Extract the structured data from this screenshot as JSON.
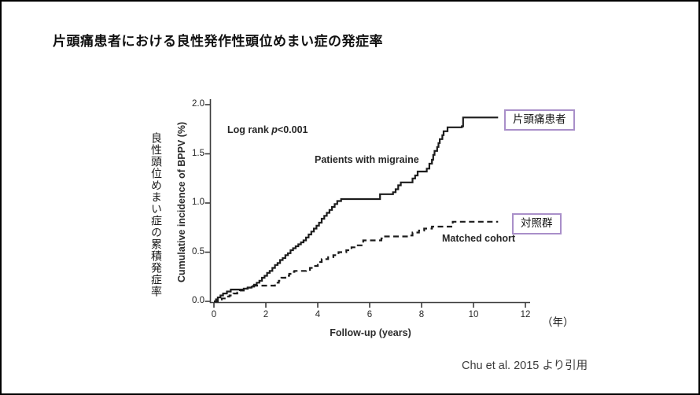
{
  "frame": {
    "title": "片頭痛患者における良性発作性頭位めまい症の発症率",
    "citation": "Chu et al. 2015 より引用"
  },
  "labels": {
    "y_axis_jp": "良性頭位めまい症の累積発症率",
    "y_axis_en": "Cumulative incidence of BPPV (%)",
    "x_axis_title": "Follow-up (years)",
    "x_axis_unit": "（年）",
    "log_rank_prefix": "Log rank ",
    "log_rank_p": "p",
    "log_rank_value": "<0.001",
    "series1_inline": "Patients with migraine",
    "series2_inline": "Matched cohort",
    "series1_box": "片頭痛患者",
    "series2_box": "対照群"
  },
  "colors": {
    "curve": "#1c1c1c",
    "axis": "#3d3d3d",
    "box_border": "#a98fc9",
    "citation_text": "#3a3a3a"
  },
  "chart_data": {
    "type": "line",
    "subtype": "step-cumulative-incidence",
    "title": "片頭痛患者における良性発作性頭位めまい症の発症率",
    "xlabel": "Follow-up (years)",
    "ylabel": "Cumulative incidence of BPPV (%)",
    "xlim": [
      0,
      12
    ],
    "ylim": [
      0.0,
      2.0
    ],
    "x_ticks": [
      0,
      2,
      4,
      6,
      8,
      10,
      12
    ],
    "y_ticks": [
      "0.0",
      "0.5",
      "1.0",
      "1.5",
      "2.0"
    ],
    "grid": false,
    "annotation": "Log rank p<0.001",
    "legend_position": "inline-right-boxes",
    "series": [
      {
        "name": "Patients with migraine",
        "name_jp": "片頭痛患者",
        "style": "solid",
        "end_value_pct": 1.87,
        "points": [
          [
            0,
            0
          ],
          [
            0.08,
            0.02
          ],
          [
            0.15,
            0.04
          ],
          [
            0.25,
            0.06
          ],
          [
            0.35,
            0.08
          ],
          [
            0.5,
            0.1
          ],
          [
            0.65,
            0.12
          ],
          [
            1.15,
            0.13
          ],
          [
            1.3,
            0.14
          ],
          [
            1.45,
            0.15
          ],
          [
            1.55,
            0.17
          ],
          [
            1.65,
            0.19
          ],
          [
            1.75,
            0.21
          ],
          [
            1.85,
            0.24
          ],
          [
            1.95,
            0.26
          ],
          [
            2.05,
            0.29
          ],
          [
            2.15,
            0.31
          ],
          [
            2.25,
            0.34
          ],
          [
            2.35,
            0.37
          ],
          [
            2.45,
            0.39
          ],
          [
            2.55,
            0.42
          ],
          [
            2.65,
            0.44
          ],
          [
            2.75,
            0.47
          ],
          [
            2.85,
            0.49
          ],
          [
            2.95,
            0.52
          ],
          [
            3.05,
            0.54
          ],
          [
            3.15,
            0.56
          ],
          [
            3.25,
            0.58
          ],
          [
            3.35,
            0.6
          ],
          [
            3.45,
            0.62
          ],
          [
            3.55,
            0.65
          ],
          [
            3.65,
            0.68
          ],
          [
            3.75,
            0.71
          ],
          [
            3.85,
            0.74
          ],
          [
            3.95,
            0.77
          ],
          [
            4.05,
            0.8
          ],
          [
            4.15,
            0.84
          ],
          [
            4.25,
            0.87
          ],
          [
            4.35,
            0.9
          ],
          [
            4.45,
            0.93
          ],
          [
            4.55,
            0.96
          ],
          [
            4.65,
            0.99
          ],
          [
            4.75,
            1.02
          ],
          [
            4.9,
            1.04
          ],
          [
            6.3,
            1.04
          ],
          [
            6.4,
            1.09
          ],
          [
            6.9,
            1.11
          ],
          [
            7.0,
            1.14
          ],
          [
            7.1,
            1.18
          ],
          [
            7.2,
            1.21
          ],
          [
            7.6,
            1.21
          ],
          [
            7.65,
            1.25
          ],
          [
            7.75,
            1.28
          ],
          [
            7.85,
            1.32
          ],
          [
            8.2,
            1.35
          ],
          [
            8.3,
            1.4
          ],
          [
            8.4,
            1.44
          ],
          [
            8.45,
            1.49
          ],
          [
            8.5,
            1.53
          ],
          [
            8.6,
            1.57
          ],
          [
            8.65,
            1.61
          ],
          [
            8.7,
            1.65
          ],
          [
            8.8,
            1.69
          ],
          [
            8.85,
            1.73
          ],
          [
            9.0,
            1.77
          ],
          [
            9.55,
            1.78
          ],
          [
            9.6,
            1.87
          ],
          [
            10.95,
            1.87
          ]
        ]
      },
      {
        "name": "Matched cohort",
        "name_jp": "対照群",
        "style": "dashed",
        "end_value_pct": 0.81,
        "points": [
          [
            0,
            0
          ],
          [
            0.15,
            0.02
          ],
          [
            0.3,
            0.03
          ],
          [
            0.45,
            0.05
          ],
          [
            0.6,
            0.06
          ],
          [
            0.75,
            0.08
          ],
          [
            0.9,
            0.09
          ],
          [
            1.0,
            0.11
          ],
          [
            1.15,
            0.13
          ],
          [
            1.3,
            0.14
          ],
          [
            1.4,
            0.16
          ],
          [
            2.25,
            0.16
          ],
          [
            2.35,
            0.19
          ],
          [
            2.5,
            0.21
          ],
          [
            2.6,
            0.24
          ],
          [
            2.75,
            0.26
          ],
          [
            2.9,
            0.28
          ],
          [
            3.0,
            0.3
          ],
          [
            3.1,
            0.31
          ],
          [
            3.55,
            0.32
          ],
          [
            3.7,
            0.34
          ],
          [
            3.85,
            0.36
          ],
          [
            4.0,
            0.4
          ],
          [
            4.15,
            0.43
          ],
          [
            4.4,
            0.45
          ],
          [
            4.6,
            0.47
          ],
          [
            4.8,
            0.5
          ],
          [
            5.1,
            0.52
          ],
          [
            5.3,
            0.55
          ],
          [
            5.5,
            0.57
          ],
          [
            5.75,
            0.62
          ],
          [
            6.45,
            0.64
          ],
          [
            6.55,
            0.66
          ],
          [
            7.5,
            0.67
          ],
          [
            7.65,
            0.7
          ],
          [
            7.9,
            0.72
          ],
          [
            8.1,
            0.74
          ],
          [
            8.4,
            0.76
          ],
          [
            9.1,
            0.76
          ],
          [
            9.2,
            0.81
          ],
          [
            10.95,
            0.81
          ]
        ]
      }
    ]
  }
}
